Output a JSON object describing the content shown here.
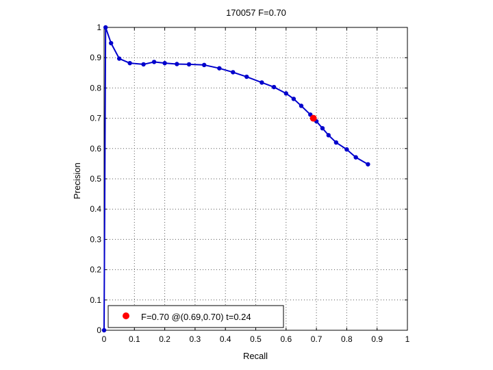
{
  "chart_data": {
    "type": "line",
    "title": "170057 F=0.70",
    "xlabel": "Recall",
    "ylabel": "Precision",
    "xlim": [
      0,
      1
    ],
    "ylim": [
      0,
      1
    ],
    "xticks": [
      "0",
      "0.1",
      "0.2",
      "0.3",
      "0.4",
      "0.5",
      "0.6",
      "0.7",
      "0.8",
      "0.9",
      "1"
    ],
    "yticks": [
      "0",
      "0.1",
      "0.2",
      "0.3",
      "0.4",
      "0.5",
      "0.6",
      "0.7",
      "0.8",
      "0.9",
      "1"
    ],
    "grid": true,
    "series": [
      {
        "color": "#0000cc",
        "x": [
          0.0,
          0.005,
          0.023,
          0.05,
          0.085,
          0.13,
          0.165,
          0.2,
          0.24,
          0.28,
          0.33,
          0.38,
          0.425,
          0.47,
          0.52,
          0.56,
          0.6,
          0.625,
          0.65,
          0.68,
          0.7,
          0.72,
          0.74,
          0.765,
          0.8,
          0.83,
          0.87
        ],
        "y": [
          0.0,
          1.0,
          0.948,
          0.897,
          0.882,
          0.878,
          0.886,
          0.882,
          0.879,
          0.878,
          0.876,
          0.865,
          0.852,
          0.837,
          0.818,
          0.803,
          0.782,
          0.764,
          0.741,
          0.712,
          0.69,
          0.667,
          0.644,
          0.62,
          0.597,
          0.571,
          0.548
        ]
      }
    ],
    "highlight_point": {
      "x": 0.69,
      "y": 0.7,
      "color": "#ff0000"
    },
    "legend": {
      "position": "bottom-left",
      "text": "F=0.70 @(0.69,0.70) t=0.24"
    }
  }
}
